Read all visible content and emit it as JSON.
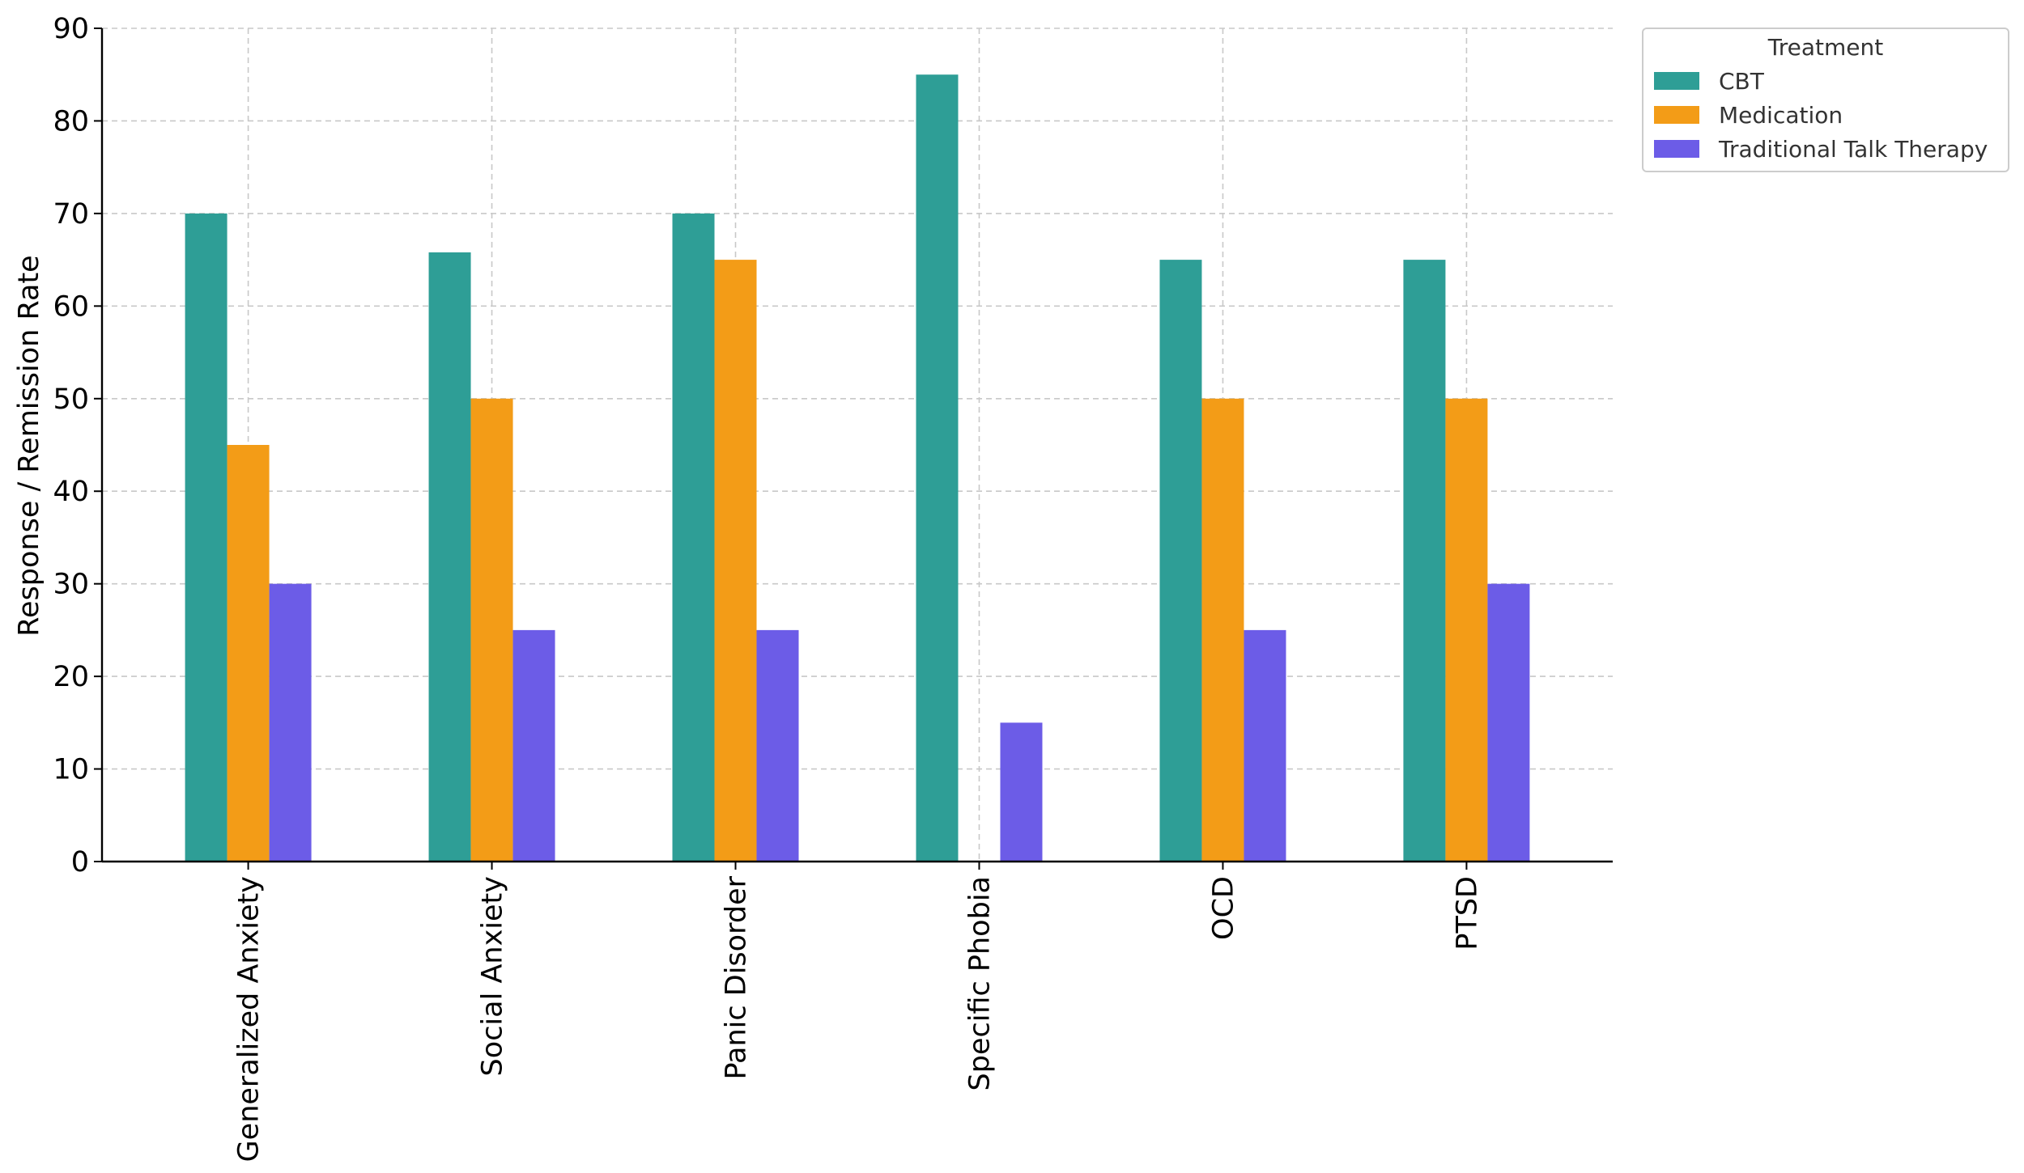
{
  "chart_data": {
    "type": "bar",
    "title": "",
    "xlabel": "",
    "ylabel": "Response / Remission Rate",
    "categories": [
      "Generalized Anxiety",
      "Social Anxiety",
      "Panic Disorder",
      "Specific Phobia",
      "OCD",
      "PTSD"
    ],
    "series": [
      {
        "name": "CBT",
        "color": "#2e9e96",
        "values": [
          70,
          65.8,
          70,
          85,
          65,
          65
        ]
      },
      {
        "name": "Medication",
        "color": "#f39c17",
        "values": [
          45,
          50,
          65,
          0,
          50,
          50
        ]
      },
      {
        "name": "Traditional Talk Therapy",
        "color": "#6c5ce7",
        "values": [
          30,
          25,
          25,
          15,
          25,
          30
        ]
      }
    ],
    "ylim": [
      0,
      90
    ],
    "yticks": [
      "0",
      "10",
      "20",
      "30",
      "40",
      "50",
      "60",
      "70",
      "80",
      "90"
    ],
    "grid": true,
    "legend": {
      "title": "Treatment",
      "placement": "outside-top-right"
    }
  }
}
